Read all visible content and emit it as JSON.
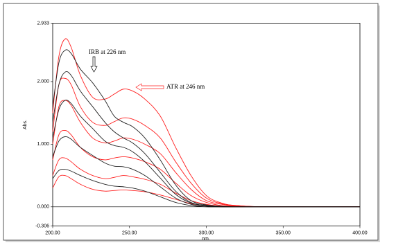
{
  "chart_data": {
    "type": "line",
    "x_label": "nm.",
    "y_label": "Abs.",
    "annotations": [
      "IRB at 226 nm",
      "ATR at 246 nm"
    ],
    "annotation_colors": [
      "#000000",
      "#ff0000"
    ],
    "x": [
      200,
      204,
      208,
      212,
      218,
      226,
      234,
      240,
      246,
      252,
      260,
      270,
      280,
      290,
      300,
      310,
      320,
      340,
      400
    ],
    "series": [
      {
        "color": "#ff2020",
        "values": [
          1.5,
          2.4,
          2.68,
          2.55,
          2.1,
          1.75,
          1.72,
          1.8,
          1.88,
          1.85,
          1.72,
          1.45,
          0.95,
          0.5,
          0.18,
          0.06,
          0.02,
          0,
          0
        ]
      },
      {
        "color": "#ff2020",
        "values": [
          1.2,
          1.95,
          2.05,
          1.95,
          1.6,
          1.35,
          1.3,
          1.36,
          1.42,
          1.4,
          1.3,
          1.1,
          0.72,
          0.38,
          0.14,
          0.05,
          0.02,
          0,
          0
        ]
      },
      {
        "color": "#ff2020",
        "values": [
          1.0,
          1.6,
          1.7,
          1.62,
          1.35,
          1.1,
          1.02,
          1.05,
          1.1,
          1.08,
          1.0,
          0.85,
          0.55,
          0.28,
          0.1,
          0.04,
          0.01,
          0,
          0
        ]
      },
      {
        "color": "#ff2020",
        "values": [
          0.75,
          1.15,
          1.22,
          1.15,
          0.95,
          0.8,
          0.75,
          0.78,
          0.8,
          0.78,
          0.72,
          0.6,
          0.38,
          0.18,
          0.07,
          0.02,
          0.01,
          0,
          0
        ]
      },
      {
        "color": "#ff2020",
        "values": [
          0.5,
          0.75,
          0.78,
          0.72,
          0.6,
          0.5,
          0.45,
          0.47,
          0.5,
          0.48,
          0.44,
          0.36,
          0.22,
          0.1,
          0.04,
          0.01,
          0,
          0,
          0
        ]
      },
      {
        "color": "#ff2020",
        "values": [
          0.3,
          0.48,
          0.5,
          0.45,
          0.36,
          0.28,
          0.25,
          0.26,
          0.27,
          0.26,
          0.24,
          0.19,
          0.12,
          0.05,
          0.02,
          0,
          0,
          0,
          0
        ]
      },
      {
        "color": "#222222",
        "values": [
          1.6,
          2.3,
          2.5,
          2.45,
          2.2,
          1.98,
          1.7,
          1.45,
          1.35,
          1.28,
          1.1,
          0.75,
          0.35,
          0.1,
          0.03,
          0.01,
          0,
          0,
          0
        ]
      },
      {
        "color": "#222222",
        "values": [
          1.35,
          1.95,
          2.15,
          2.1,
          1.85,
          1.6,
          1.35,
          1.2,
          1.1,
          1.02,
          0.85,
          0.55,
          0.25,
          0.07,
          0.02,
          0,
          0,
          0,
          0
        ]
      },
      {
        "color": "#222222",
        "values": [
          1.1,
          1.55,
          1.7,
          1.65,
          1.45,
          1.25,
          1.05,
          0.98,
          0.95,
          0.88,
          0.72,
          0.46,
          0.2,
          0.06,
          0.02,
          0,
          0,
          0,
          0
        ]
      },
      {
        "color": "#222222",
        "values": [
          0.8,
          1.05,
          1.12,
          1.08,
          0.95,
          0.82,
          0.7,
          0.65,
          0.64,
          0.6,
          0.5,
          0.32,
          0.14,
          0.04,
          0.01,
          0,
          0,
          0,
          0
        ]
      },
      {
        "color": "#222222",
        "values": [
          0.45,
          0.58,
          0.6,
          0.57,
          0.5,
          0.42,
          0.36,
          0.33,
          0.32,
          0.3,
          0.25,
          0.16,
          0.07,
          0.02,
          0,
          0,
          0,
          0,
          0
        ]
      }
    ],
    "xlim": [
      200,
      400
    ],
    "xticks": [
      {
        "value": 200,
        "label": "200.00"
      },
      {
        "value": 250,
        "label": "250.00"
      },
      {
        "value": 300,
        "label": "300.00"
      },
      {
        "value": 350,
        "label": "350.00"
      },
      {
        "value": 400,
        "label": "400.00"
      }
    ],
    "ylim": [
      -0.306,
      2.933
    ],
    "yticks": [
      -0.306,
      {
        "value": 0,
        "label": "0.000"
      },
      {
        "value": 1,
        "label": "1.000"
      },
      {
        "value": 2,
        "label": "2.000"
      },
      2.933
    ],
    "zero_line": true
  }
}
